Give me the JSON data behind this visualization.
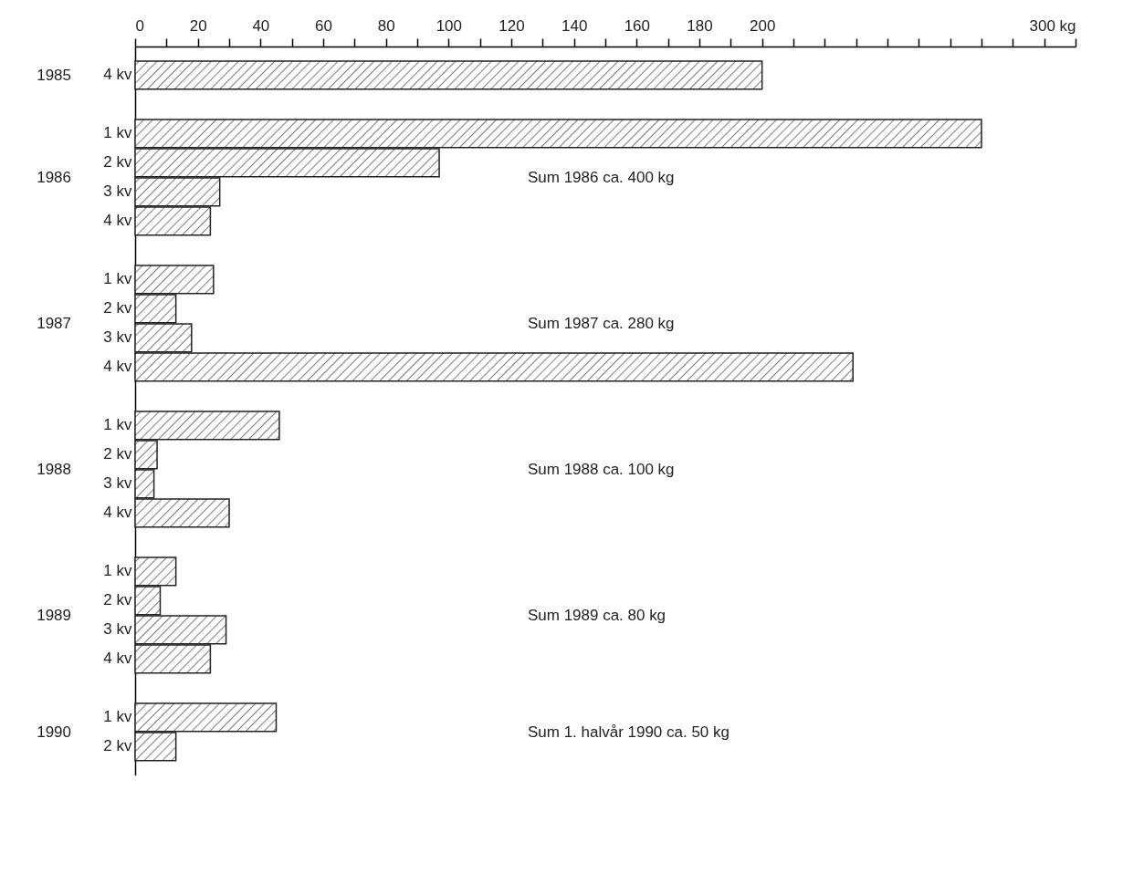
{
  "chart_data": {
    "type": "bar",
    "orientation": "horizontal",
    "color": "#222222",
    "categories": [
      "4 kv",
      null,
      "1 kv",
      "2 kv",
      "3 kv",
      "4 kv",
      null,
      "1 kv",
      "2 kv",
      "3 kv",
      "4 kv",
      null,
      "1 kv",
      "2 kv",
      "3 kv",
      "4 kv",
      null,
      "1 kv",
      "2 kv",
      "3 kv",
      "4 kv",
      null,
      "1 kv",
      "2 kv"
    ],
    "values": [
      200,
      null,
      270,
      97,
      27,
      24,
      null,
      25,
      13,
      18,
      229,
      null,
      46,
      7,
      6,
      30,
      null,
      13,
      8,
      29,
      24,
      null,
      45,
      13
    ],
    "xlim": [
      0,
      300
    ],
    "xticks": [
      0,
      {
        "value": 10,
        "label": null
      },
      20,
      {
        "value": 30,
        "label": null
      },
      40,
      {
        "value": 50,
        "label": null
      },
      60,
      {
        "value": 70,
        "label": null
      },
      80,
      {
        "value": 90,
        "label": null
      },
      100,
      {
        "value": 110,
        "label": null
      },
      120,
      {
        "value": 130,
        "label": null
      },
      140,
      {
        "value": 150,
        "label": null
      },
      160,
      {
        "value": 170,
        "label": null
      },
      180,
      {
        "value": 190,
        "label": null
      },
      200,
      {
        "value": 210,
        "label": null
      },
      {
        "value": 220,
        "label": null
      },
      {
        "value": 230,
        "label": null
      },
      {
        "value": 240,
        "label": null
      },
      {
        "value": 250,
        "label": null
      },
      {
        "value": 260,
        "label": null
      },
      {
        "value": 270,
        "label": null
      },
      {
        "value": 280,
        "label": null
      },
      {
        "value": 290,
        "label": null
      },
      {
        "value": 300,
        "label": "300 kg"
      }
    ],
    "annotations": [
      "1985",
      "1986",
      "1987",
      "1988",
      "1989",
      "1990",
      "Sum 1986 ca. 400 kg",
      "Sum 1987 ca. 280 kg",
      "Sum 1988 ca. 100 kg",
      "Sum 1989 ca.   80 kg",
      "Sum 1. halvår 1990 ca. 50 kg"
    ]
  }
}
